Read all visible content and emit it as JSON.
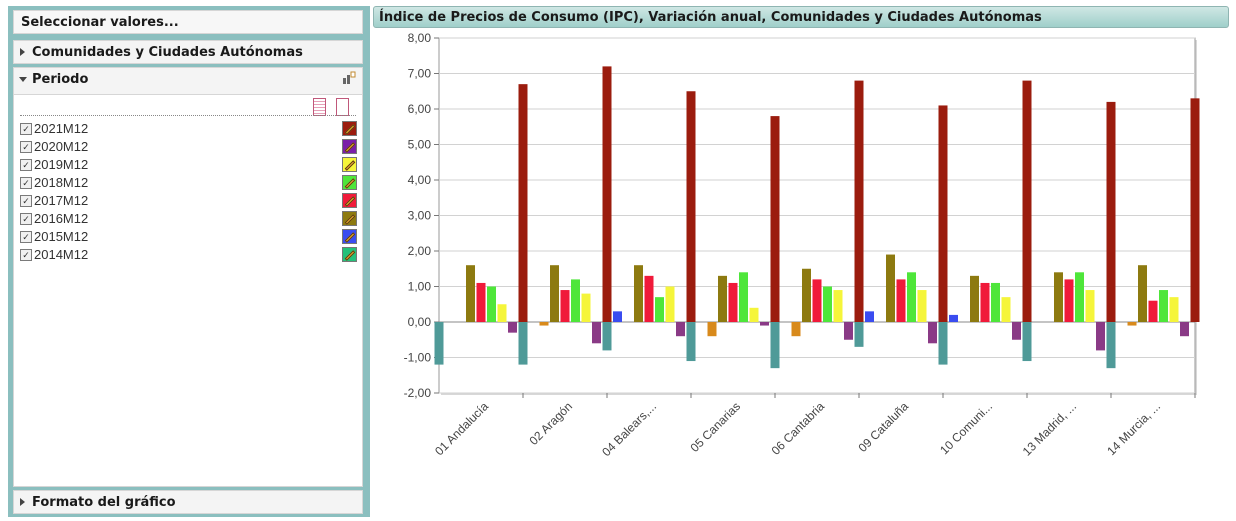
{
  "sidebar": {
    "select_title": "Seleccionar valores...",
    "comunidades_title": "Comunidades y Ciudades Autónomas",
    "periodo_title": "Periodo",
    "formato_title": "Formato del gráfico",
    "periods": [
      {
        "label": "2021M12",
        "color": "#9b1c0e"
      },
      {
        "label": "2020M12",
        "color": "#7a1fa8"
      },
      {
        "label": "2019M12",
        "color": "#f5f53a"
      },
      {
        "label": "2018M12",
        "color": "#4ee63a"
      },
      {
        "label": "2017M12",
        "color": "#f01a3a"
      },
      {
        "label": "2016M12",
        "color": "#8d7a10"
      },
      {
        "label": "2015M12",
        "color": "#3a4cf0"
      },
      {
        "label": "2014M12",
        "color": "#24c07a"
      }
    ]
  },
  "chart_data": {
    "type": "bar",
    "title": "Índice de Precios de Consumo (IPC), Variación anual, Comunidades y Ciudades Autónomas",
    "categories": [
      "01 Andalucía",
      "02 Aragón",
      "04 Balears,...",
      "05 Canarias",
      "06 Cantabria",
      "09 Cataluña",
      "10 Comuni...",
      "13 Madrid, ...",
      "14 Murcia, ..."
    ],
    "ylim": [
      -2,
      8
    ],
    "yticks": [
      "8,00",
      "7,00",
      "6,00",
      "5,00",
      "4,00",
      "3,00",
      "2,00",
      "1,00",
      "0,00",
      "-1,00",
      "-2,00"
    ],
    "grid": true,
    "series": [
      {
        "color": "#4f9a98",
        "values": [
          -1.2,
          -1.2,
          -0.8,
          -1.1,
          -1.3,
          -0.7,
          -1.2,
          -1.1,
          -1.3
        ]
      },
      {
        "color": "#3a4cf0",
        "values": [
          0,
          0,
          0.3,
          0,
          0,
          0.3,
          0.2,
          0,
          0
        ]
      },
      {
        "color": "#d88a1c",
        "values": [
          0,
          -0.1,
          0,
          -0.4,
          -0.4,
          0,
          0,
          0,
          -0.1
        ]
      },
      {
        "color": "#8d7a10",
        "values": [
          1.6,
          1.6,
          1.6,
          1.3,
          1.5,
          1.9,
          1.3,
          1.4,
          1.6
        ]
      },
      {
        "color": "#f01a3a",
        "values": [
          1.1,
          0.9,
          1.3,
          1.1,
          1.2,
          1.2,
          1.1,
          1.2,
          0.6
        ]
      },
      {
        "color": "#4ee63a",
        "values": [
          1.0,
          1.2,
          0.7,
          1.4,
          1.0,
          1.4,
          1.1,
          1.4,
          0.9
        ]
      },
      {
        "color": "#f5f53a",
        "values": [
          0.5,
          0.8,
          1.0,
          0.4,
          0.9,
          0.9,
          0.7,
          0.9,
          0.7
        ]
      },
      {
        "color": "#8a3a86",
        "values": [
          -0.3,
          -0.6,
          -0.4,
          -0.1,
          -0.5,
          -0.6,
          -0.5,
          -0.8,
          -0.4
        ]
      },
      {
        "color": "#9b1c0e",
        "values": [
          6.7,
          7.2,
          6.5,
          5.8,
          6.8,
          6.1,
          6.8,
          6.2,
          6.3
        ]
      }
    ]
  }
}
